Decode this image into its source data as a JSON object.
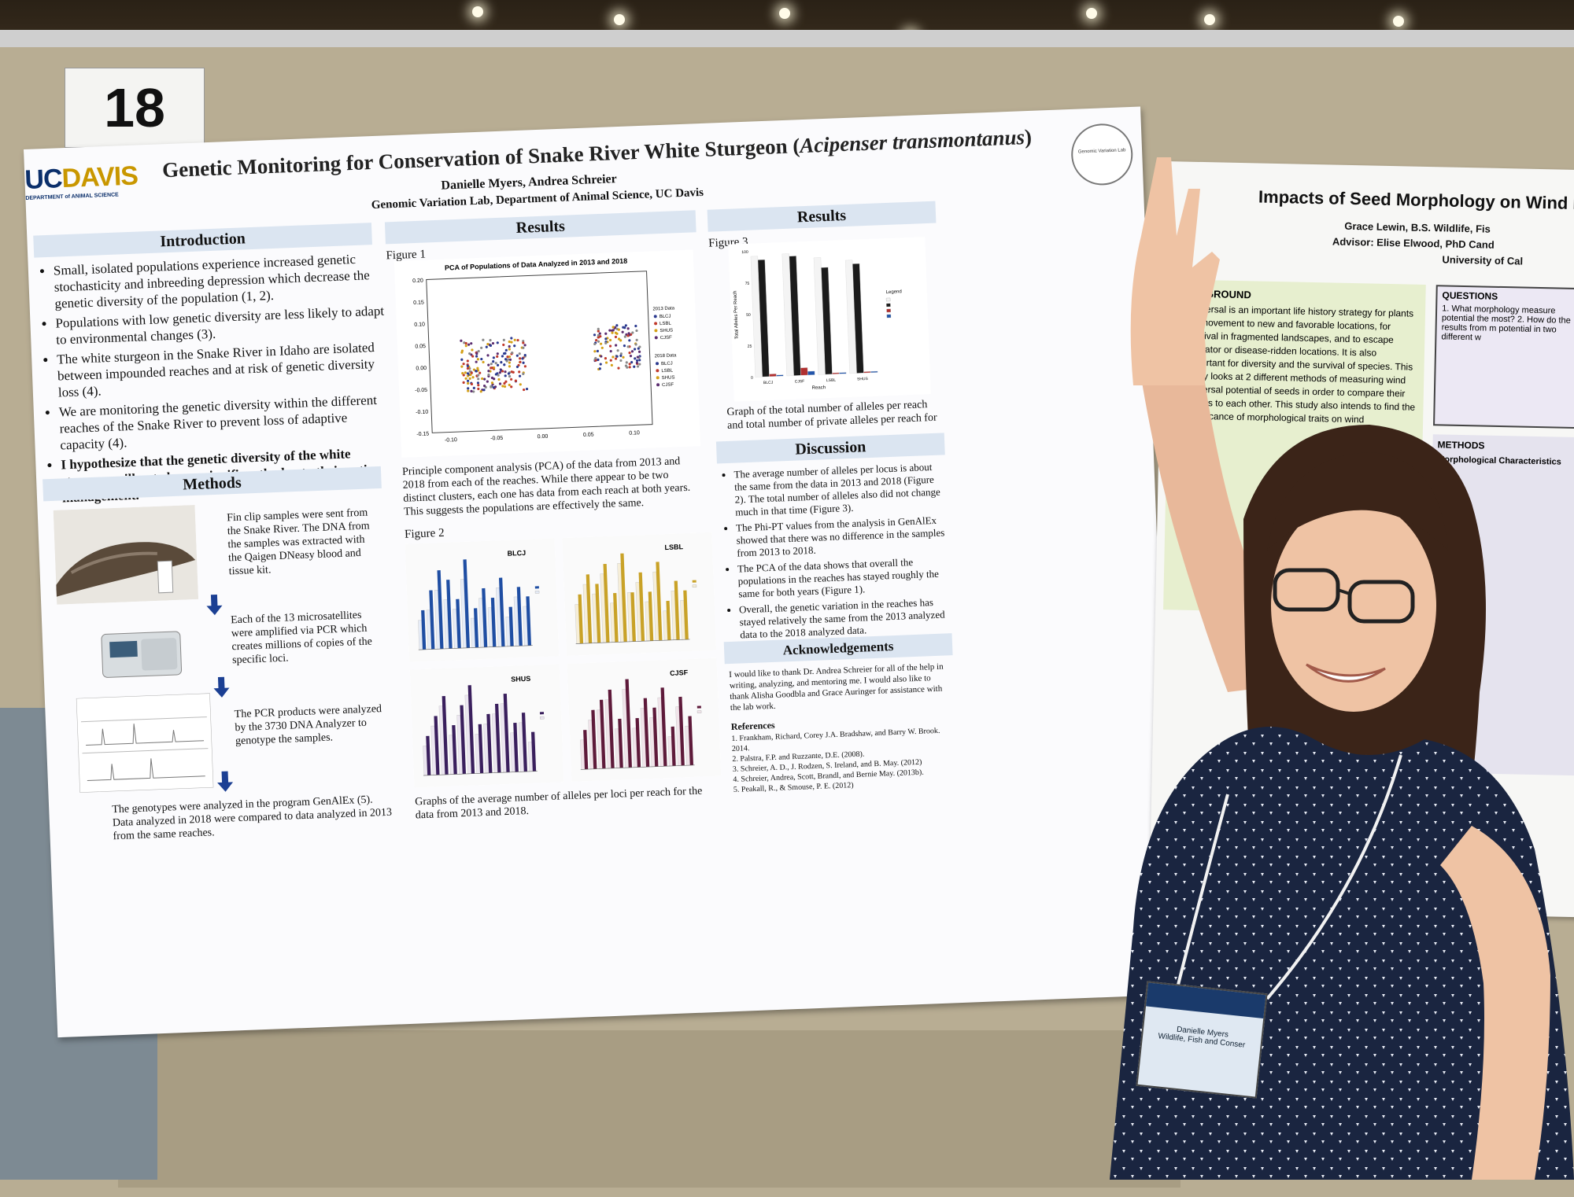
{
  "board": {
    "number": "18"
  },
  "poster": {
    "logo_main": "UC",
    "logo_gold": "DAVIS",
    "logo_sub": "DEPARTMENT of ANIMAL SCIENCE",
    "title": "Genetic Monitoring for Conservation of Snake River White Sturgeon (",
    "title_species": "Acipenser transmontanus",
    "title_close": ")",
    "authors": "Danielle Myers, Andrea Schreier",
    "affiliation": "Genomic Variation Lab, Department of Animal Science, UC Davis",
    "seal_text": "Genomic Variation Lab",
    "introduction": {
      "heading": "Introduction",
      "bullets": [
        "Small, isolated populations experience increased genetic stochasticity and inbreeding depression which decrease the genetic diversity of the population (1, 2).",
        "Populations with low genetic diversity are less likely to adapt to environmental changes (3).",
        "The white sturgeon in the Snake River in Idaho are isolated between impounded reaches and at risk of genetic diversity loss (4).",
        "We are monitoring the genetic diversity within the different reaches of the Snake River to prevent loss of adaptive capacity (4).",
        "I hypothesize that the genetic diversity of the white sturgeon will not change significantly due to their active management."
      ]
    },
    "methods": {
      "heading": "Methods",
      "steps": [
        "Fin clip samples were sent from the Snake River. The DNA from the samples was extracted with the Qaigen DNeasy blood and tissue kit.",
        "Each of the 13 microsatellites were amplified via PCR which creates millions of copies of the specific loci.",
        "The PCR products were analyzed by the 3730 DNA Analyzer to genotype the samples.",
        "The genotypes were analyzed in the program GenAlEx (5). Data analyzed in 2018 were compared to data analyzed in 2013 from the same reaches."
      ]
    },
    "results1": {
      "heading": "Results",
      "figure1_label": "Figure 1",
      "pca_title": "PCA of Populations of Data Analyzed in 2013 and 2018",
      "pca_caption": "Principle component analysis (PCA) of the data from 2013 and 2018 from each of the reaches. While there appear to be two distinct clusters, each one has data from each reach at both years. This suggests the populations are effectively the same.",
      "figure2_label": "Figure 2",
      "fig2_caption": "Graphs of the average number of alleles per loci per reach for the data from 2013 and 2018."
    },
    "results2": {
      "heading": "Results",
      "figure3_label": "Figure 3",
      "fig3_caption": "Graph of the total number of alleles per reach and total number of private alleles per reach for"
    },
    "discussion": {
      "heading": "Discussion",
      "bullets": [
        "The average number of alleles per locus is about the same from the data in 2013 and 2018 (Figure 2). The total number of alleles also did not change much in that time (Figure 3).",
        "The Phi-PT values from the analysis in GenAlEx showed that there was no difference in the samples from 2013 to 2018.",
        "The PCA of the data shows that overall the populations in the reaches has stayed roughly the same for both years (Figure 1).",
        "Overall, the genetic variation in the reaches has stayed relatively the same from the 2013 analyzed data to the 2018 analyzed data."
      ]
    },
    "acknowledgements": {
      "heading": "Acknowledgements",
      "text": "I would like to thank Dr. Andrea Schreier for all of the help in writing, analyzing, and mentoring me. I would also like to thank Alisha Goodbla and Grace Auringer for assistance with the lab work."
    },
    "references": {
      "heading": "References",
      "items": [
        "1. Frankham, Richard, Corey J.A. Bradshaw, and Barry W. Brook. 2014.",
        "2. Palstra, F.P. and Ruzzante, D.E. (2008).",
        "3. Schreier, A. D., J. Rodzen, S. Ireland, and B. May. (2012)",
        "4. Schreier, Andrea, Scott, Brandl, and Bernie May. (2013b).",
        "5. Peakall, R., & Smouse, P. E. (2012)"
      ]
    }
  },
  "chart_data": [
    {
      "type": "scatter",
      "title": "PCA of Populations of Data Analyzed in 2013 and 2018",
      "xlim": [
        -0.12,
        0.12
      ],
      "ylim": [
        -0.15,
        0.2
      ],
      "x_ticks": [
        "-0.10",
        "-0.05",
        "0.00",
        "0.05",
        "0.10"
      ],
      "y_ticks": [
        "-0.15",
        "-0.10",
        "-0.05",
        "0.00",
        "0.05",
        "0.10",
        "0.15",
        "0.20"
      ],
      "legend_2013_title": "2013 Data",
      "legend_2018_title": "2018 Data",
      "groups": [
        "BLCJ",
        "LSBL",
        "SHUS",
        "CJSF"
      ],
      "clusters": [
        {
          "center_x": -0.05,
          "center_y": 0.0,
          "spread_x": 0.035,
          "spread_y": 0.06,
          "count": 190
        },
        {
          "center_x": 0.085,
          "center_y": 0.03,
          "spread_x": 0.025,
          "spread_y": 0.05,
          "count": 110
        }
      ],
      "colors": [
        "#2b3a8f",
        "#c0392b",
        "#d4a017",
        "#5b2c6f",
        "#8a8a8a"
      ]
    },
    {
      "type": "bar",
      "label": "BLCJ",
      "color_2013": "#e6ecf7",
      "color_2018": "#1f4ea3",
      "values_2013": [
        3,
        4,
        6,
        5,
        4,
        7,
        3,
        5,
        4,
        6,
        3,
        5,
        4
      ],
      "values_2018": [
        4,
        6,
        8,
        7,
        5,
        9,
        4,
        6,
        5,
        7,
        4,
        6,
        5
      ]
    },
    {
      "type": "bar",
      "label": "LSBL",
      "color_2013": "#f6eed8",
      "color_2018": "#c9a227",
      "values_2013": [
        4,
        6,
        5,
        7,
        4,
        8,
        5,
        6,
        4,
        7,
        3,
        5,
        4
      ],
      "values_2018": [
        5,
        7,
        6,
        8,
        5,
        9,
        5,
        7,
        5,
        8,
        4,
        6,
        5
      ]
    },
    {
      "type": "bar",
      "label": "SHUS",
      "color_2013": "#ece6f1",
      "color_2018": "#3a1f5d",
      "values_2013": [
        3,
        5,
        7,
        4,
        6,
        8,
        4,
        5,
        6,
        7,
        4,
        5,
        3
      ],
      "values_2018": [
        4,
        6,
        8,
        5,
        7,
        9,
        5,
        6,
        7,
        8,
        5,
        6,
        4
      ]
    },
    {
      "type": "bar",
      "label": "CJSF",
      "color_2013": "#f1e4ea",
      "color_2018": "#5e1a3a",
      "values_2013": [
        3,
        5,
        6,
        7,
        4,
        8,
        4,
        6,
        5,
        7,
        3,
        6,
        4
      ],
      "values_2018": [
        4,
        6,
        7,
        8,
        5,
        9,
        5,
        7,
        6,
        8,
        4,
        7,
        5
      ]
    },
    {
      "type": "bar",
      "ylabel": "Total Alleles Per Reach",
      "xlabel": "Reach",
      "categories": [
        "BLCJ",
        "CJSF",
        "LSBL",
        "SHUS"
      ],
      "ylim": [
        0,
        100
      ],
      "y_ticks": [
        "0",
        "25",
        "50",
        "75",
        "100"
      ],
      "legend_title": "Legend",
      "series": [
        {
          "values": [
            96,
            97,
            93,
            90
          ],
          "color": "#f4f4f4"
        },
        {
          "values": [
            93,
            95,
            85,
            87
          ],
          "color": "#1b1b1b"
        },
        {
          "values": [
            2,
            6,
            1,
            1
          ],
          "color": "#b03030"
        },
        {
          "values": [
            1,
            3,
            1,
            1
          ],
          "color": "#2255aa"
        }
      ]
    }
  ],
  "neighbor_poster": {
    "title": "Impacts of Seed Morphology on Wind Dispe",
    "author": "Grace Lewin, B.S. Wildlife, Fis",
    "advisor": "Advisor: Elise Elwood, PhD Cand",
    "univ": "University of Cal",
    "background_heading": "BACKGROUND",
    "background_text": "Dispersal is an important life history strategy for plants for movement to new and favorable locations, for survival in fragmented landscapes, and to escape predator or disease-ridden locations. It is also important for diversity and the survival of species. This study looks at 2 different methods of measuring wind dispersal potential of seeds in order to compare their results to each other. This study also intends to find the significance of morphological traits on wind",
    "questions_heading": "QUESTIONS",
    "questions_text": "1. What morphology measure potential the most? 2. How do the results from m potential in two different w",
    "methods_heading": "METHODS",
    "methods_text": "Morphological Characteristics"
  },
  "badge": {
    "name": "Danielle Myers",
    "dept": "Wildlife, Fish and Conser"
  }
}
